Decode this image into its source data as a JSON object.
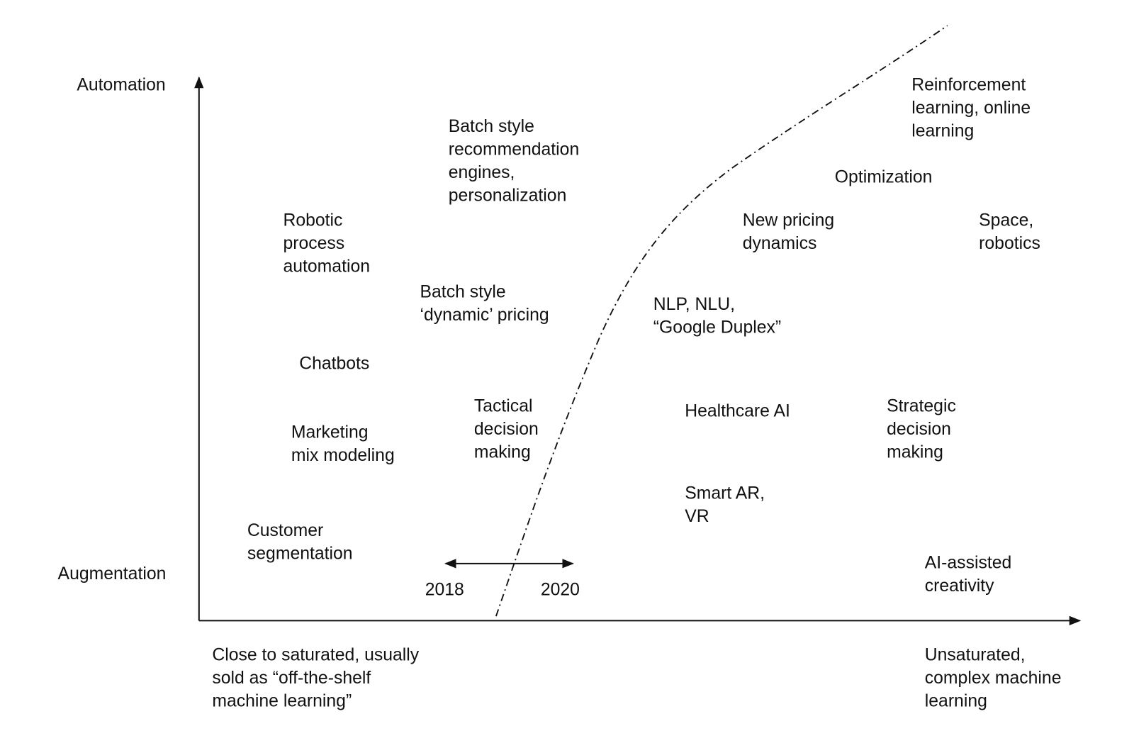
{
  "axes": {
    "y_top": "Automation",
    "y_bottom": "Augmentation",
    "x_left": [
      "Close to saturated, usually",
      "sold as “off-the-shelf",
      "machine learning”"
    ],
    "x_right": [
      "Unsaturated,",
      "complex machine",
      "learning"
    ]
  },
  "timeline": {
    "start": "2018",
    "end": "2020"
  },
  "items": [
    {
      "lines": [
        "Batch style",
        "recommendation",
        "engines,",
        "personalization"
      ]
    },
    {
      "lines": [
        "Robotic",
        "process",
        "automation"
      ]
    },
    {
      "lines": [
        "Batch style",
        "‘dynamic’ pricing"
      ]
    },
    {
      "lines": [
        "Chatbots"
      ]
    },
    {
      "lines": [
        "Marketing",
        "mix modeling"
      ]
    },
    {
      "lines": [
        "Tactical",
        "decision",
        "making"
      ]
    },
    {
      "lines": [
        "Customer",
        "segmentation"
      ]
    },
    {
      "lines": [
        "Reinforcement",
        "learning, online",
        "learning"
      ]
    },
    {
      "lines": [
        "Optimization"
      ]
    },
    {
      "lines": [
        "New pricing",
        "dynamics"
      ]
    },
    {
      "lines": [
        "Space,",
        "robotics"
      ]
    },
    {
      "lines": [
        "NLP, NLU,",
        "“Google Duplex”"
      ]
    },
    {
      "lines": [
        "Healthcare AI"
      ]
    },
    {
      "lines": [
        "Strategic",
        "decision",
        "making"
      ]
    },
    {
      "lines": [
        "Smart AR,",
        "VR"
      ]
    },
    {
      "lines": [
        "AI-assisted",
        "creativity"
      ]
    }
  ]
}
